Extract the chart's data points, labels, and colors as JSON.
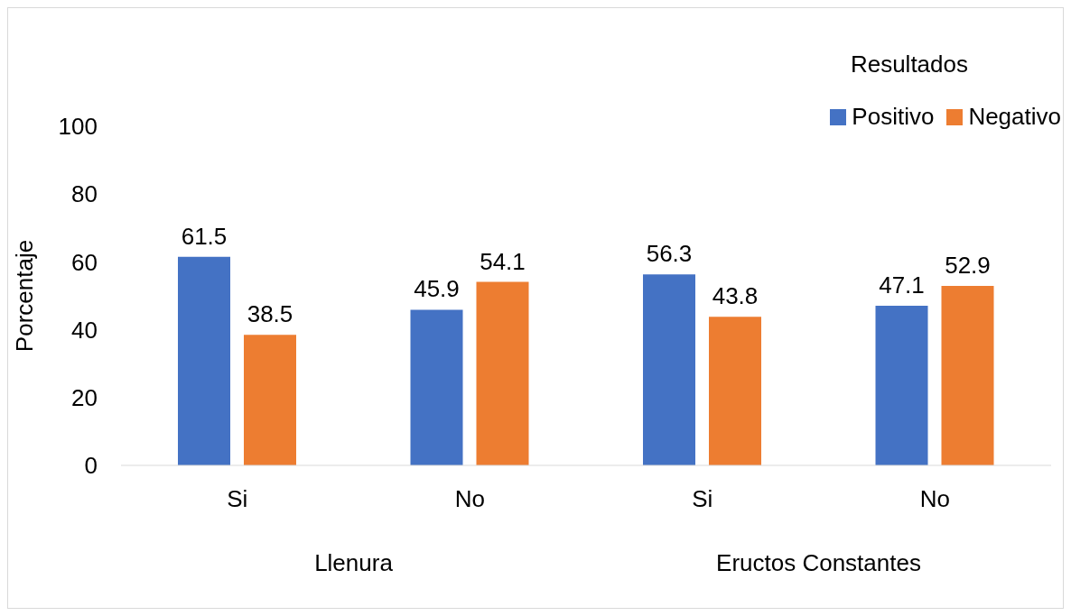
{
  "chart_data": {
    "type": "bar",
    "categories": [
      "Si",
      "No",
      "Si",
      "No"
    ],
    "ylabel": "Porcentaje",
    "ylim": [
      0,
      100
    ],
    "yticks": [
      0,
      20,
      40,
      60,
      80,
      100
    ],
    "series": [
      {
        "name": "Positivo",
        "color": "#4472c4",
        "values": [
          61.5,
          45.9,
          56.3,
          47.1
        ]
      },
      {
        "name": "Negativo",
        "color": "#ed7d31",
        "values": [
          38.5,
          54.1,
          43.8,
          52.9
        ]
      }
    ],
    "annotations": [
      "Llenura",
      "Eructos Constantes"
    ],
    "legend_title": "Resultados",
    "legend": "top right",
    "data_labels": true,
    "grid": false
  }
}
